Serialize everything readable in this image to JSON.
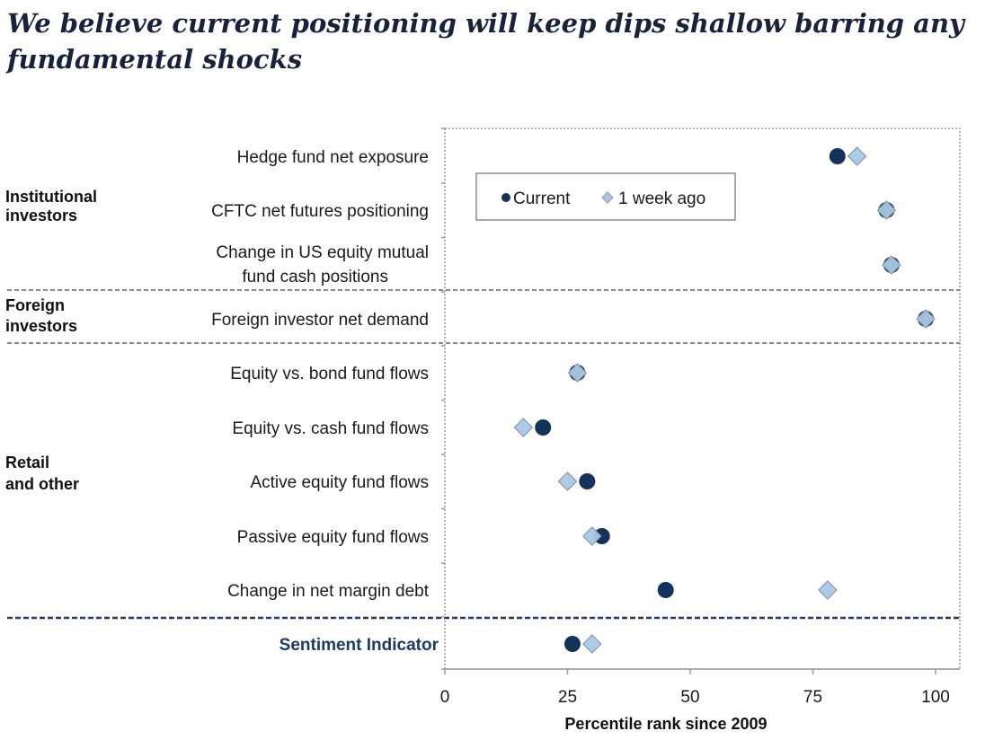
{
  "title": "We believe current positioning will keep dips shallow barring any fundamental shocks",
  "chart_data": {
    "type": "scatter",
    "orientation": "horizontal-dot-plot",
    "xlabel": "Percentile rank since 2009",
    "xlim": [
      0,
      105
    ],
    "xticks": [
      0,
      25,
      50,
      75,
      100
    ],
    "grid": false,
    "legend_position": "top-left",
    "groups": [
      {
        "label_line1": "Institutional",
        "label_line2": "investors"
      },
      {
        "label_line1": "Foreign",
        "label_line2": "investors"
      },
      {
        "label_line1": "Retail",
        "label_line2": "and other"
      }
    ],
    "categories": [
      [
        "Hedge fund net exposure"
      ],
      [
        "CFTC net futures positioning"
      ],
      [
        "Change in US equity mutual",
        "fund cash positions"
      ],
      [
        "Foreign investor net demand"
      ],
      [
        "Equity vs. bond fund flows"
      ],
      [
        "Equity vs. cash fund flows"
      ],
      [
        "Active equity fund flows"
      ],
      [
        "Passive equity fund flows"
      ],
      [
        "Change in net margin debt"
      ],
      [
        "Sentiment Indicator"
      ]
    ],
    "series": [
      {
        "name": "Current",
        "marker": "circle",
        "color": "#14325a",
        "values": [
          80,
          90,
          91,
          98,
          27,
          20,
          29,
          32,
          45,
          26
        ]
      },
      {
        "name": "1 week ago",
        "marker": "diamond",
        "color": "#a9c8e6",
        "values": [
          84,
          90,
          91,
          98,
          27,
          16,
          25,
          30,
          78,
          30
        ]
      }
    ],
    "colors": {
      "current": "#14325a",
      "week_ago_fill": "#a9c8e6",
      "week_ago_stroke": "#8a98a8",
      "sentiment_label": "#1f3a63",
      "sentiment_divider": "#1f3a63",
      "section_divider": "#8a8a8a"
    }
  }
}
